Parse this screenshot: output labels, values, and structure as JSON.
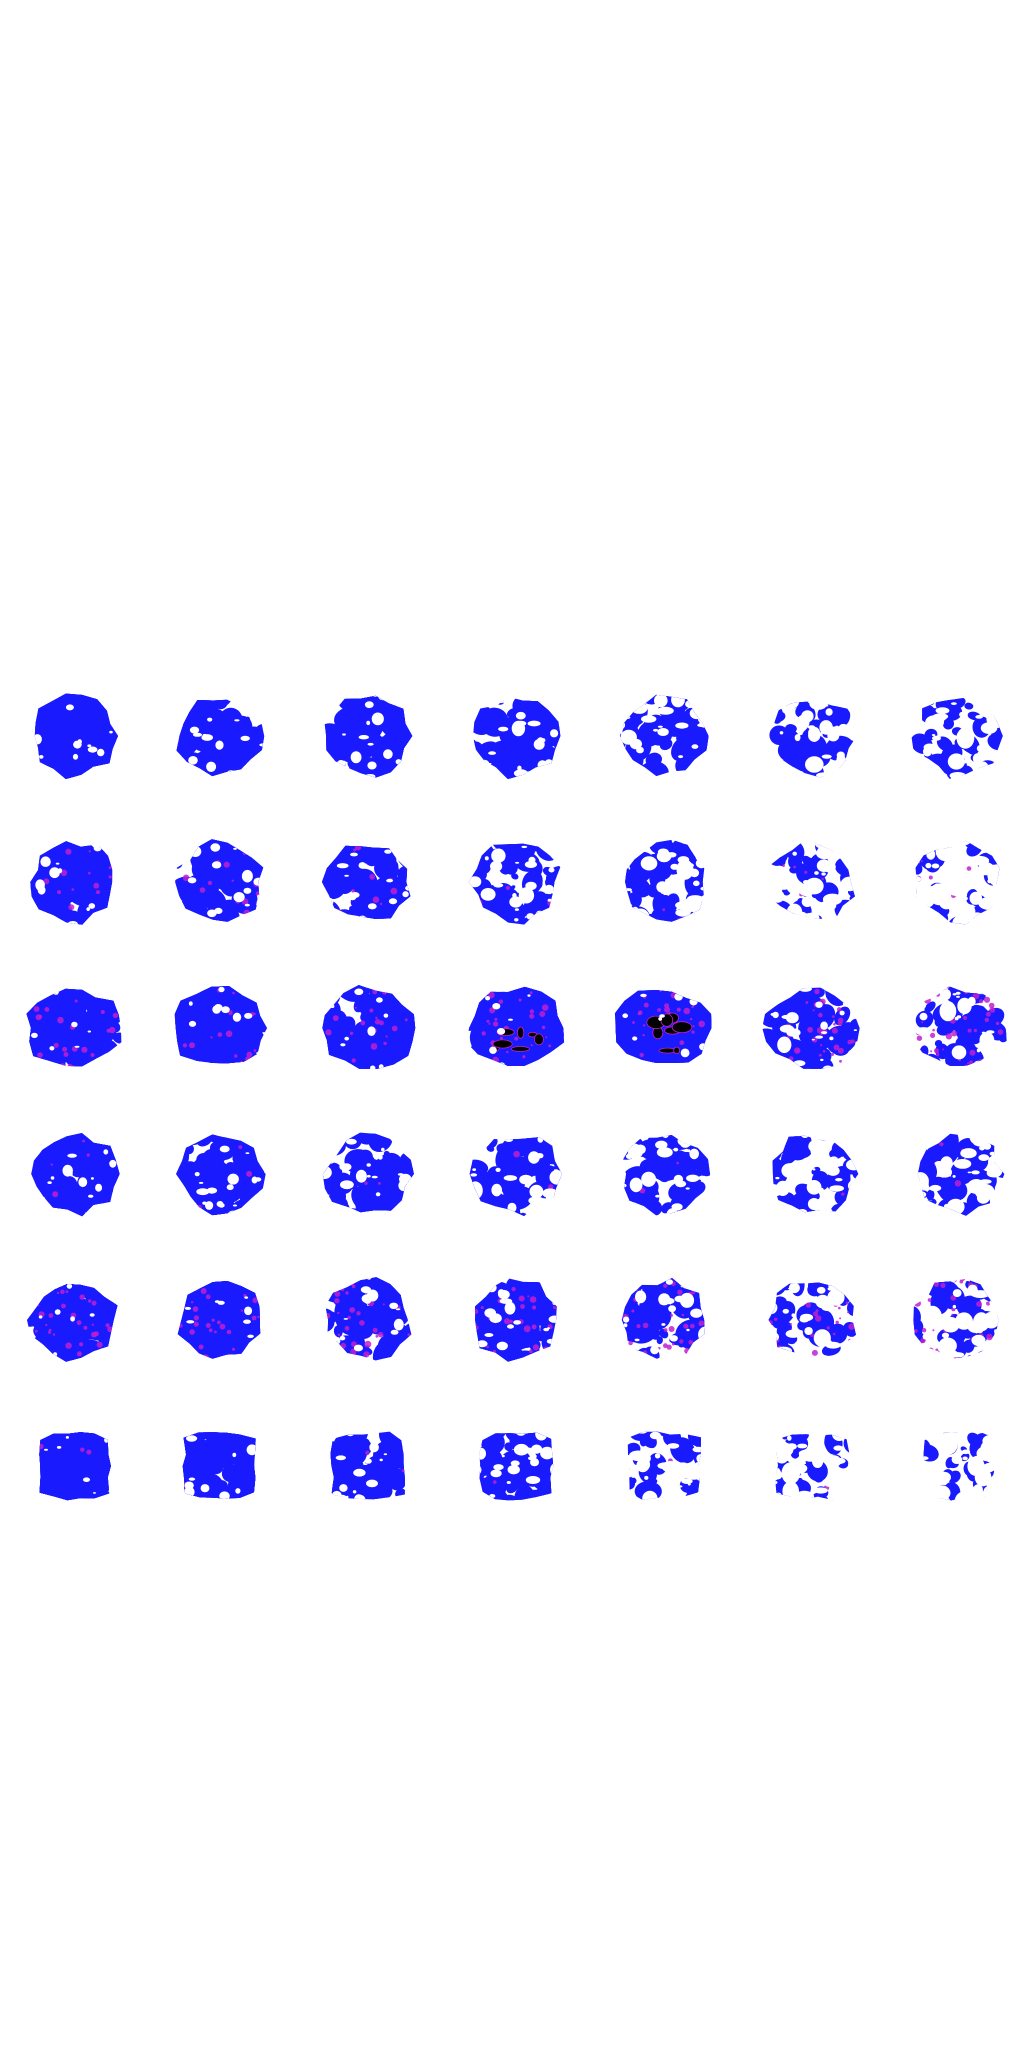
{
  "figure": {
    "background_color": "#ffffff",
    "grid": {
      "rows": 6,
      "columns": 7
    },
    "colors": {
      "primary_blue": "#1a1aff",
      "magenta": "#c020d0",
      "black": "#000000",
      "white": "#ffffff"
    },
    "rows": [
      {
        "row": 1,
        "style": "blue network fragmenting into patches",
        "fill_fractions": [
          0.8,
          0.72,
          0.66,
          0.56,
          0.44,
          0.34,
          0.32
        ],
        "magenta": [
          0,
          0,
          0,
          0,
          0,
          0,
          0
        ],
        "black": [
          0,
          0,
          0,
          0,
          0,
          0,
          0
        ]
      },
      {
        "row": 2,
        "style": "blue with magenta edges",
        "fill_fractions": [
          0.8,
          0.72,
          0.66,
          0.5,
          0.36,
          0.2,
          0.14
        ],
        "magenta": [
          0.25,
          0.22,
          0.18,
          0.12,
          0.08,
          0.15,
          0.15
        ],
        "black": [
          0,
          0,
          0,
          0,
          0,
          0,
          0
        ]
      },
      {
        "row": 3,
        "style": "dense blue-purple with dark cores",
        "fill_fractions": [
          0.96,
          0.9,
          0.86,
          0.93,
          0.88,
          0.55,
          0.38
        ],
        "magenta": [
          0.35,
          0.3,
          0.3,
          0.45,
          0.4,
          0.55,
          0.7
        ],
        "black": [
          0,
          0,
          0,
          0.18,
          0.22,
          0,
          0
        ]
      },
      {
        "row": 4,
        "style": "blue sponge-like texture",
        "fill_fractions": [
          0.8,
          0.66,
          0.58,
          0.52,
          0.44,
          0.36,
          0.28
        ],
        "magenta": [
          0.06,
          0.05,
          0.04,
          0.04,
          0.04,
          0.05,
          0.05
        ],
        "black": [
          0,
          0,
          0,
          0,
          0,
          0,
          0
        ]
      },
      {
        "row": 5,
        "style": "purple-blue with magenta speckle",
        "fill_fractions": [
          0.94,
          0.86,
          0.74,
          0.64,
          0.54,
          0.4,
          0.3
        ],
        "magenta": [
          0.55,
          0.5,
          0.5,
          0.55,
          0.55,
          0.55,
          0.6
        ],
        "black": [
          0,
          0,
          0,
          0,
          0,
          0,
          0
        ]
      },
      {
        "row": 6,
        "style": "square-ish blue texture thinning out",
        "fill_fractions": [
          0.88,
          0.74,
          0.64,
          0.54,
          0.3,
          0.16,
          0.1
        ],
        "magenta": [
          0.05,
          0.04,
          0.03,
          0.04,
          0.05,
          0.05,
          0.05
        ],
        "black": [
          0,
          0,
          0,
          0,
          0,
          0,
          0
        ]
      }
    ]
  }
}
